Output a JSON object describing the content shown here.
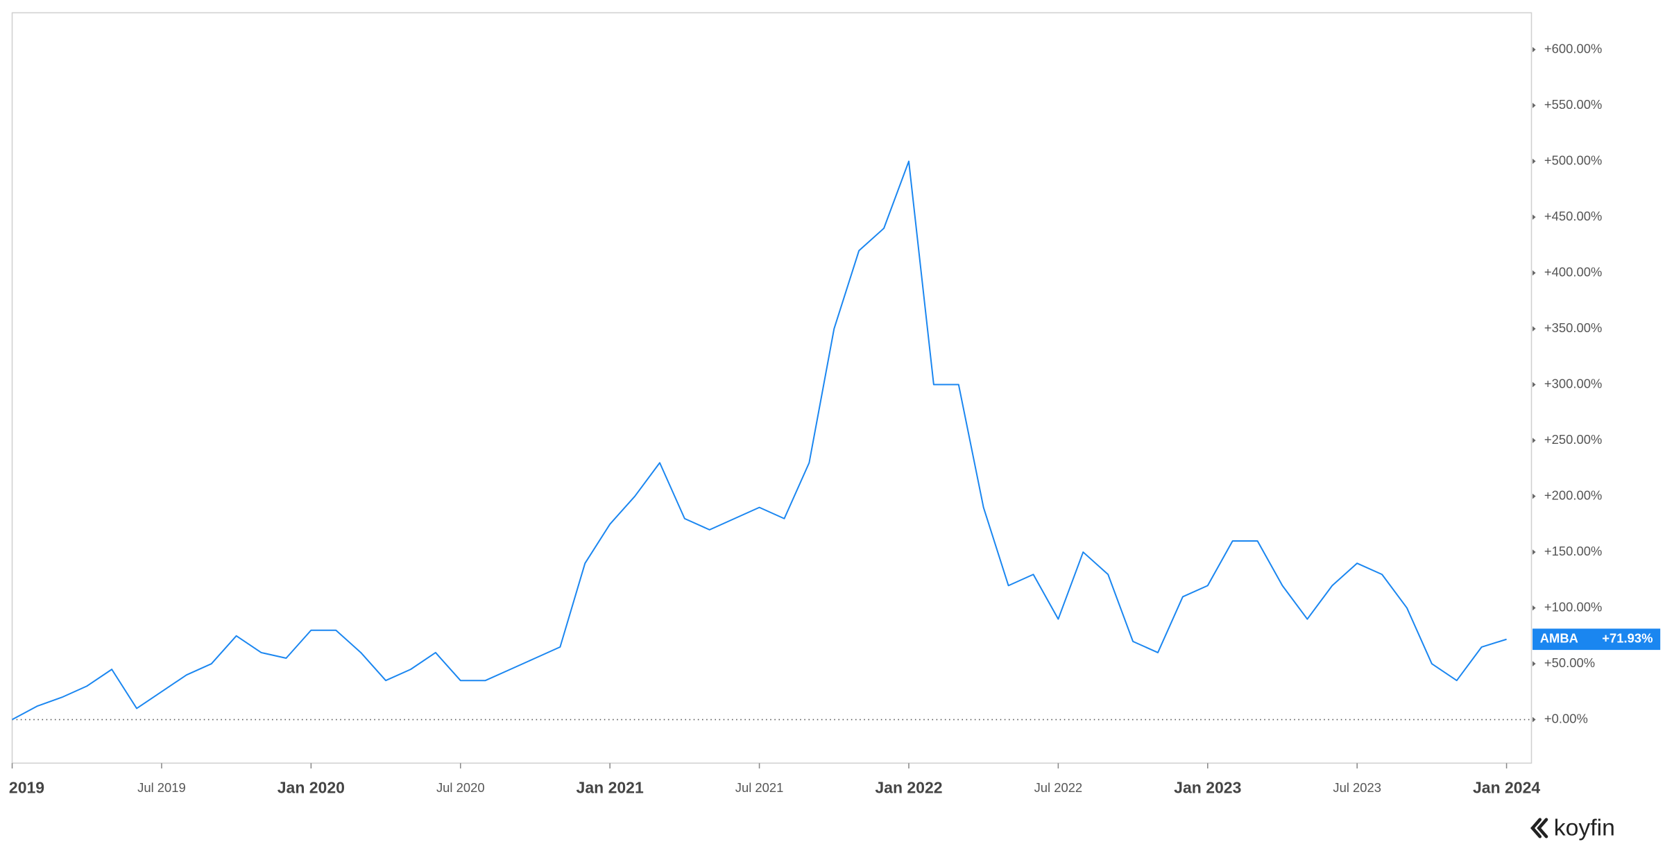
{
  "chart_data": {
    "type": "line",
    "x": [
      "2019-01",
      "2019-02",
      "2019-03",
      "2019-04",
      "2019-05",
      "2019-06",
      "2019-07",
      "2019-08",
      "2019-09",
      "2019-10",
      "2019-11",
      "2019-12",
      "2020-01",
      "2020-02",
      "2020-03",
      "2020-04",
      "2020-05",
      "2020-06",
      "2020-07",
      "2020-08",
      "2020-09",
      "2020-10",
      "2020-11",
      "2020-12",
      "2021-01",
      "2021-02",
      "2021-03",
      "2021-04",
      "2021-05",
      "2021-06",
      "2021-07",
      "2021-08",
      "2021-09",
      "2021-10",
      "2021-11",
      "2021-12",
      "2022-01",
      "2022-02",
      "2022-03",
      "2022-04",
      "2022-05",
      "2022-06",
      "2022-07",
      "2022-08",
      "2022-09",
      "2022-10",
      "2022-11",
      "2022-12",
      "2023-01",
      "2023-02",
      "2023-03",
      "2023-04",
      "2023-05",
      "2023-06",
      "2023-07",
      "2023-08",
      "2023-09",
      "2023-10",
      "2023-11",
      "2023-12",
      "2024-01"
    ],
    "series": [
      {
        "name": "AMBA",
        "color": "#1a86f0",
        "values": [
          0,
          12,
          20,
          30,
          45,
          10,
          25,
          40,
          50,
          75,
          60,
          55,
          80,
          80,
          60,
          35,
          45,
          60,
          35,
          35,
          45,
          55,
          65,
          140,
          175,
          200,
          230,
          180,
          170,
          180,
          190,
          180,
          230,
          350,
          420,
          440,
          500,
          300,
          300,
          190,
          120,
          130,
          90,
          150,
          130,
          70,
          60,
          110,
          120,
          160,
          160,
          120,
          90,
          120,
          140,
          130,
          100,
          50,
          35,
          65,
          71.93
        ],
        "value_labels": [
          null,
          null,
          null,
          null,
          null,
          null,
          null,
          null,
          null,
          null,
          null,
          null,
          null,
          null,
          null,
          null,
          null,
          null,
          null,
          null,
          null,
          null,
          null,
          null,
          null,
          null,
          null,
          null,
          null,
          null,
          null,
          null,
          null,
          null,
          null,
          null,
          null,
          null,
          null,
          null,
          null,
          null,
          null,
          null,
          null,
          null,
          null,
          null,
          null,
          null,
          null,
          null,
          null,
          null,
          null,
          null,
          null,
          null,
          null,
          null,
          "+71.93%"
        ]
      }
    ],
    "xlim": [
      "2019-01",
      "2024-02"
    ],
    "xticks": [
      {
        "value": "2019-01",
        "label": "2019"
      },
      {
        "value": "2019-07",
        "label": "Jul 2019"
      },
      {
        "value": "2020-01",
        "label": "Jan 2020"
      },
      {
        "value": "2020-07",
        "label": "Jul 2020"
      },
      {
        "value": "2021-01",
        "label": "Jan 2021"
      },
      {
        "value": "2021-07",
        "label": "Jul 2021"
      },
      {
        "value": "2022-01",
        "label": "Jan 2022"
      },
      {
        "value": "2022-07",
        "label": "Jul 2022"
      },
      {
        "value": "2023-01",
        "label": "Jan 2023"
      },
      {
        "value": "2023-07",
        "label": "Jul 2023"
      },
      {
        "value": "2024-01",
        "label": "Jan 2024"
      }
    ],
    "ylim": [
      -39,
      633
    ],
    "yticks": [
      {
        "value": 0,
        "label": "+0.00%"
      },
      {
        "value": 50,
        "label": "+50.00%"
      },
      {
        "value": 100,
        "label": "+100.00%"
      },
      {
        "value": 150,
        "label": "+150.00%"
      },
      {
        "value": 200,
        "label": "+200.00%"
      },
      {
        "value": 250,
        "label": "+250.00%"
      },
      {
        "value": 300,
        "label": "+300.00%"
      },
      {
        "value": 350,
        "label": "+350.00%"
      },
      {
        "value": 400,
        "label": "+400.00%"
      },
      {
        "value": 450,
        "label": "+450.00%"
      },
      {
        "value": 500,
        "label": "+500.00%"
      },
      {
        "value": 550,
        "label": "+550.00%"
      },
      {
        "value": 600,
        "label": "+600.00%"
      }
    ],
    "grid": false
  },
  "brand": "koyfin"
}
